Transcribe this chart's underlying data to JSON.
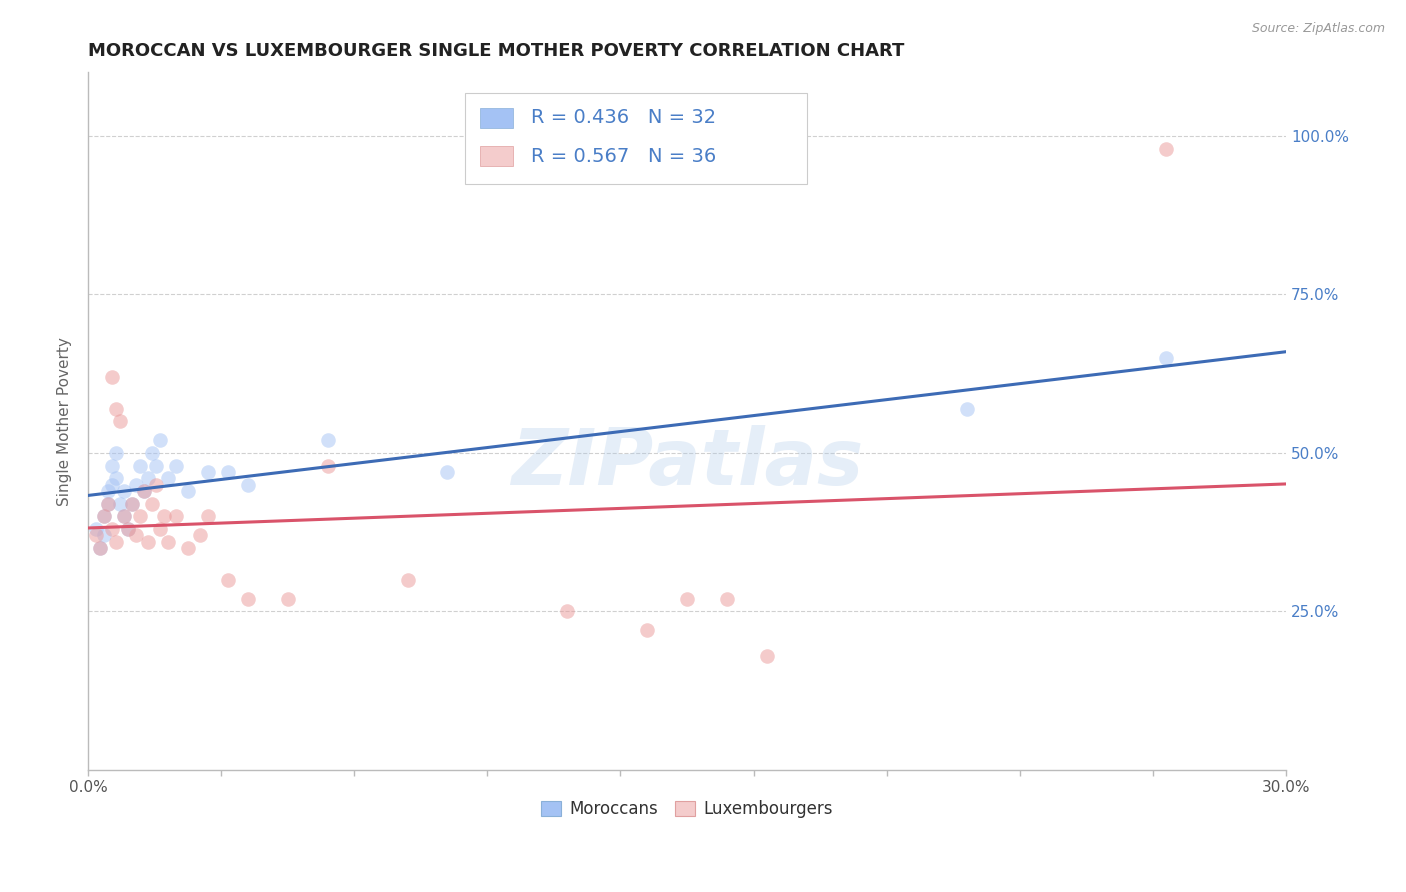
{
  "title": "MOROCCAN VS LUXEMBOURGER SINGLE MOTHER POVERTY CORRELATION CHART",
  "source": "Source: ZipAtlas.com",
  "ylabel": "Single Mother Poverty",
  "xlim": [
    0.0,
    0.3
  ],
  "ylim": [
    0.0,
    1.1
  ],
  "xtick_vals": [
    0.0,
    0.03333,
    0.06667,
    0.1,
    0.13333,
    0.16667,
    0.2,
    0.23333,
    0.26667,
    0.3
  ],
  "xtick_labels_show": {
    "0.0": "0.0%",
    "0.30": "30.0%"
  },
  "ytick_vals": [
    0.25,
    0.5,
    0.75,
    1.0
  ],
  "ytick_labels": [
    "25.0%",
    "50.0%",
    "75.0%",
    "100.0%"
  ],
  "blue_scatter_color": "#a4c2f4",
  "pink_scatter_color": "#ea9999",
  "blue_line_color": "#3d6bb5",
  "pink_line_color": "#d9536a",
  "legend_blue_fill": "#a4c2f4",
  "legend_pink_fill": "#f4cccc",
  "R_blue": 0.436,
  "N_blue": 32,
  "R_pink": 0.567,
  "N_pink": 36,
  "legend_label_blue": "Moroccans",
  "legend_label_pink": "Luxembourgers",
  "watermark": "ZIPatlas",
  "blue_x": [
    0.002,
    0.003,
    0.004,
    0.004,
    0.005,
    0.005,
    0.006,
    0.006,
    0.007,
    0.007,
    0.008,
    0.009,
    0.009,
    0.01,
    0.011,
    0.012,
    0.013,
    0.014,
    0.015,
    0.016,
    0.017,
    0.018,
    0.02,
    0.022,
    0.025,
    0.03,
    0.035,
    0.04,
    0.06,
    0.09,
    0.22,
    0.27
  ],
  "blue_y": [
    0.38,
    0.35,
    0.4,
    0.37,
    0.42,
    0.44,
    0.45,
    0.48,
    0.5,
    0.46,
    0.42,
    0.4,
    0.44,
    0.38,
    0.42,
    0.45,
    0.48,
    0.44,
    0.46,
    0.5,
    0.48,
    0.52,
    0.46,
    0.48,
    0.44,
    0.47,
    0.47,
    0.45,
    0.52,
    0.47,
    0.57,
    0.65
  ],
  "pink_x": [
    0.002,
    0.003,
    0.004,
    0.005,
    0.006,
    0.006,
    0.007,
    0.007,
    0.008,
    0.009,
    0.01,
    0.011,
    0.012,
    0.013,
    0.014,
    0.015,
    0.016,
    0.017,
    0.018,
    0.019,
    0.02,
    0.022,
    0.025,
    0.028,
    0.03,
    0.035,
    0.04,
    0.05,
    0.06,
    0.08,
    0.12,
    0.14,
    0.15,
    0.16,
    0.17,
    0.27
  ],
  "pink_y": [
    0.37,
    0.35,
    0.4,
    0.42,
    0.62,
    0.38,
    0.57,
    0.36,
    0.55,
    0.4,
    0.38,
    0.42,
    0.37,
    0.4,
    0.44,
    0.36,
    0.42,
    0.45,
    0.38,
    0.4,
    0.36,
    0.4,
    0.35,
    0.37,
    0.4,
    0.3,
    0.27,
    0.27,
    0.48,
    0.3,
    0.25,
    0.22,
    0.27,
    0.27,
    0.18,
    0.98
  ],
  "background_color": "#ffffff",
  "grid_color": "#d0d0d0",
  "scatter_size": 110,
  "scatter_alpha": 0.5,
  "text_color_rv": "#4a7ec7",
  "text_color_nv": "#3355aa"
}
